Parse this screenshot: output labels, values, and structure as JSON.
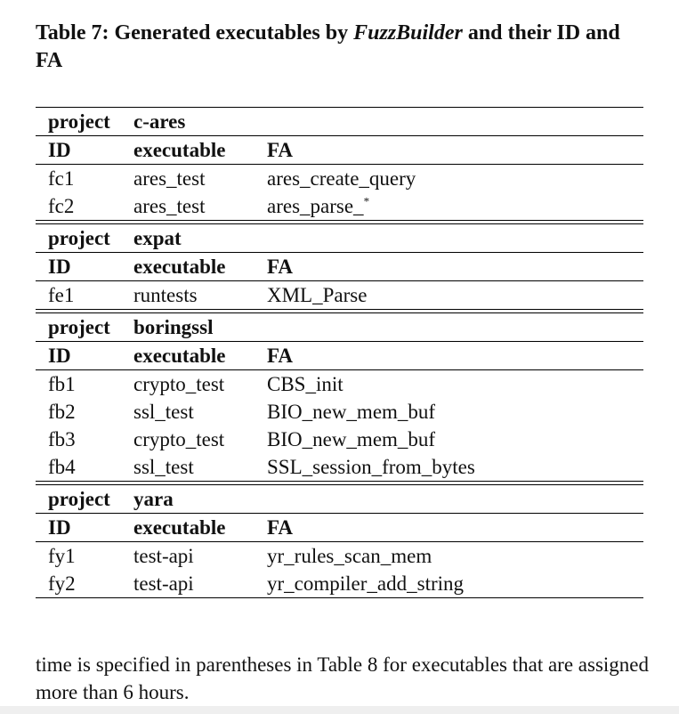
{
  "caption": {
    "prefix": "Table 7: Generated executables by ",
    "italic": "FuzzBuilder",
    "suffix": " and their ID and FA"
  },
  "table": {
    "groups": [
      {
        "project_label": "project",
        "project_name": "c-ares",
        "headers": [
          "ID",
          "executable",
          "FA"
        ],
        "rows": [
          [
            "fc1",
            "ares_test",
            "ares_create_query"
          ],
          [
            "fc2",
            "ares_test",
            "ares_parse_",
            "*"
          ]
        ]
      },
      {
        "project_label": "project",
        "project_name": "expat",
        "headers": [
          "ID",
          "executable",
          "FA"
        ],
        "rows": [
          [
            "fe1",
            "runtests",
            "XML_Parse"
          ]
        ]
      },
      {
        "project_label": "project",
        "project_name": "boringssl",
        "headers": [
          "ID",
          "executable",
          "FA"
        ],
        "rows": [
          [
            "fb1",
            "crypto_test",
            "CBS_init"
          ],
          [
            "fb2",
            "ssl_test",
            "BIO_new_mem_buf"
          ],
          [
            "fb3",
            "crypto_test",
            "BIO_new_mem_buf"
          ],
          [
            "fb4",
            "ssl_test",
            "SSL_session_from_bytes"
          ]
        ]
      },
      {
        "project_label": "project",
        "project_name": "yara",
        "headers": [
          "ID",
          "executable",
          "FA"
        ],
        "rows": [
          [
            "fy1",
            "test-api",
            "yr_rules_scan_mem"
          ],
          [
            "fy2",
            "test-api",
            "yr_compiler_add_string"
          ]
        ]
      }
    ]
  },
  "body_text": "time is specified in parentheses in Table 8 for executables that are assigned more than 6 hours."
}
